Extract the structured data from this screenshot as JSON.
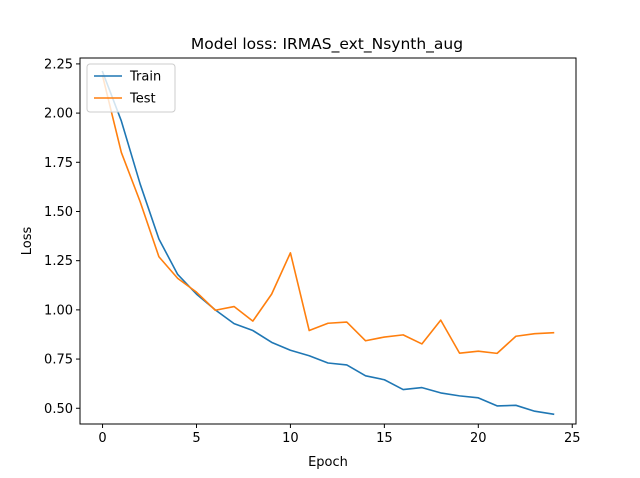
{
  "chart_data": {
    "type": "line",
    "title": "Model loss: IRMAS_ext_Nsynth_aug",
    "xlabel": "Epoch",
    "ylabel": "Loss",
    "xlim": [
      -1.2,
      25.2
    ],
    "ylim": [
      0.42,
      2.28
    ],
    "x_ticks": [
      0,
      5,
      10,
      15,
      20,
      25
    ],
    "x_tick_labels": [
      "0",
      "5",
      "10",
      "15",
      "20",
      "25"
    ],
    "y_ticks": [
      0.5,
      0.75,
      1.0,
      1.25,
      1.5,
      1.75,
      2.0,
      2.25
    ],
    "y_tick_labels": [
      "0.50",
      "0.75",
      "1.00",
      "1.25",
      "1.50",
      "1.75",
      "2.00",
      "2.25"
    ],
    "legend_position": "top-left",
    "grid": false,
    "x": [
      0,
      1,
      2,
      3,
      4,
      5,
      6,
      7,
      8,
      9,
      10,
      11,
      12,
      13,
      14,
      15,
      16,
      17,
      18,
      19,
      20,
      21,
      22,
      23,
      24
    ],
    "series": [
      {
        "name": "Train",
        "color": "#1f77b4",
        "values": [
          2.21,
          1.96,
          1.64,
          1.36,
          1.18,
          1.08,
          1.0,
          0.93,
          0.895,
          0.835,
          0.795,
          0.767,
          0.73,
          0.72,
          0.665,
          0.645,
          0.595,
          0.605,
          0.578,
          0.563,
          0.553,
          0.512,
          0.515,
          0.485,
          0.47
        ]
      },
      {
        "name": "Test",
        "color": "#ff7f0e",
        "values": [
          2.19,
          1.8,
          1.55,
          1.27,
          1.16,
          1.09,
          0.998,
          1.017,
          0.943,
          1.08,
          1.29,
          0.895,
          0.932,
          0.938,
          0.843,
          0.862,
          0.873,
          0.827,
          0.948,
          0.78,
          0.79,
          0.779,
          0.866,
          0.879,
          0.884
        ]
      }
    ]
  }
}
